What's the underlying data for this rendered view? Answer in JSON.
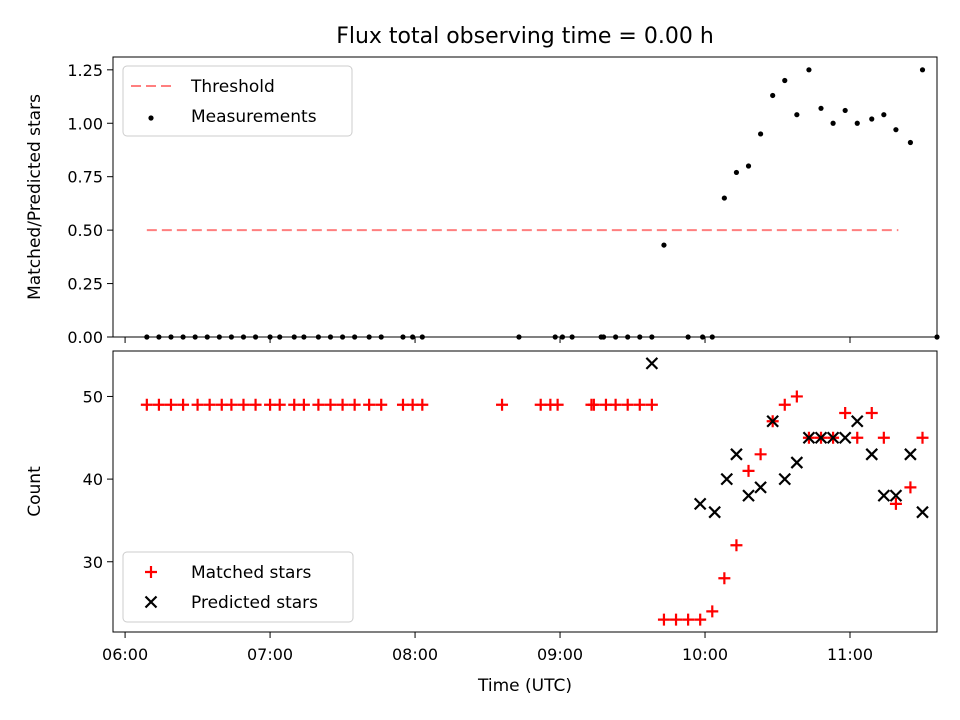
{
  "figure": {
    "title": "Flux total observing time = 0.00 h"
  },
  "colors": {
    "threshold": "#ff7f7f",
    "measurements": "#000000",
    "matched": "#ff0000",
    "predicted": "#000000"
  },
  "chart_data": [
    {
      "type": "scatter",
      "panel": "top",
      "title": "Flux total observing time = 0.00 h",
      "xlabel": "",
      "ylabel": "Matched/Predicted stars",
      "ylim": [
        0,
        1.31
      ],
      "yticks": [
        0.0,
        0.25,
        0.5,
        0.75,
        1.0,
        1.25
      ],
      "ytick_labels": [
        "0.00",
        "0.25",
        "0.50",
        "0.75",
        "1.00",
        "1.25"
      ],
      "xlim": [
        "05:55",
        "11:36"
      ],
      "xticks": [
        "06:00",
        "07:00",
        "08:00",
        "09:00",
        "10:00",
        "11:00"
      ],
      "legend_position": "upper-left",
      "series": [
        {
          "name": "Threshold",
          "kind": "dashed-line",
          "color": "#ff7f7f",
          "x": [
            "06:09",
            "11:20"
          ],
          "y": [
            0.5,
            0.5
          ]
        },
        {
          "name": "Measurements",
          "kind": "dot",
          "color": "#000000",
          "x": [
            "06:09",
            "06:14",
            "06:19",
            "06:24",
            "06:29",
            "06:34",
            "06:39",
            "06:44",
            "06:49",
            "06:54",
            "07:00",
            "07:04",
            "07:10",
            "07:14",
            "07:20",
            "07:25",
            "07:30",
            "07:35",
            "07:41",
            "07:46",
            "07:55",
            "07:59",
            "08:03",
            "08:43",
            "08:58",
            "09:01",
            "09:05",
            "09:17",
            "09:18",
            "09:23",
            "09:28",
            "09:33",
            "09:38",
            "09:43",
            "09:53",
            "09:59",
            "10:03",
            "10:08",
            "10:13",
            "10:18",
            "10:23",
            "10:28",
            "10:33",
            "10:38",
            "10:43",
            "10:48",
            "10:53",
            "10:58",
            "11:03",
            "11:09",
            "11:14",
            "11:19",
            "11:25",
            "11:30",
            "11:36"
          ],
          "y": [
            0,
            0,
            0,
            0,
            0,
            0,
            0,
            0,
            0,
            0,
            0,
            0,
            0,
            0,
            0,
            0,
            0,
            0,
            0,
            0,
            0,
            0,
            0,
            0,
            0,
            0,
            0,
            0,
            0,
            0,
            0,
            0,
            0,
            0.43,
            0,
            0,
            0,
            0.65,
            0.77,
            0.8,
            0.95,
            1.13,
            1.2,
            1.04,
            1.25,
            1.07,
            1.0,
            1.06,
            1.0,
            1.02,
            1.04,
            0.97,
            0.91,
            1.25,
            0
          ]
        }
      ]
    },
    {
      "type": "scatter",
      "panel": "bottom",
      "xlabel": "Time (UTC)",
      "ylabel": "Count",
      "ylim": [
        21.5,
        55.5
      ],
      "yticks": [
        30,
        40,
        50
      ],
      "ytick_labels": [
        "30",
        "40",
        "50"
      ],
      "xlim": [
        "05:55",
        "11:36"
      ],
      "xticks": [
        "06:00",
        "07:00",
        "08:00",
        "09:00",
        "10:00",
        "11:00"
      ],
      "xtick_labels": [
        "06:00",
        "07:00",
        "08:00",
        "09:00",
        "10:00",
        "11:00"
      ],
      "legend_position": "lower-left",
      "series": [
        {
          "name": "Matched stars",
          "marker": "plus",
          "color": "#ff0000",
          "x": [
            "06:09",
            "06:14",
            "06:19",
            "06:24",
            "06:30",
            "06:35",
            "06:40",
            "06:44",
            "06:49",
            "06:54",
            "07:00",
            "07:04",
            "07:10",
            "07:14",
            "07:20",
            "07:25",
            "07:30",
            "07:35",
            "07:41",
            "07:46",
            "07:55",
            "07:59",
            "08:03",
            "08:36",
            "08:52",
            "08:56",
            "08:59",
            "09:13",
            "09:14",
            "09:19",
            "09:23",
            "09:28",
            "09:33",
            "09:38",
            "09:43",
            "09:48",
            "09:53",
            "09:58",
            "10:03",
            "10:08",
            "10:13",
            "10:18",
            "10:23",
            "10:28",
            "10:33",
            "10:38",
            "10:43",
            "10:48",
            "10:53",
            "10:58",
            "11:03",
            "11:09",
            "11:14",
            "11:19",
            "11:25",
            "11:30"
          ],
          "y": [
            49,
            49,
            49,
            49,
            49,
            49,
            49,
            49,
            49,
            49,
            49,
            49,
            49,
            49,
            49,
            49,
            49,
            49,
            49,
            49,
            49,
            49,
            49,
            49,
            49,
            49,
            49,
            49,
            49,
            49,
            49,
            49,
            49,
            49,
            23,
            23,
            23,
            23,
            24,
            28,
            32,
            41,
            43,
            47,
            49,
            50,
            45,
            45,
            45,
            48,
            45,
            48,
            45,
            37,
            39,
            45
          ]
        },
        {
          "name": "Predicted stars",
          "marker": "x",
          "color": "#000000",
          "x": [
            "09:38",
            "09:58",
            "10:04",
            "10:09",
            "10:13",
            "10:18",
            "10:23",
            "10:28",
            "10:33",
            "10:38",
            "10:43",
            "10:48",
            "10:53",
            "10:58",
            "11:03",
            "11:09",
            "11:14",
            "11:19",
            "11:25",
            "11:30"
          ],
          "y": [
            54,
            37,
            36,
            40,
            43,
            38,
            39,
            47,
            40,
            42,
            45,
            45,
            45,
            45,
            47,
            43,
            38,
            38,
            43,
            36
          ]
        }
      ]
    }
  ]
}
